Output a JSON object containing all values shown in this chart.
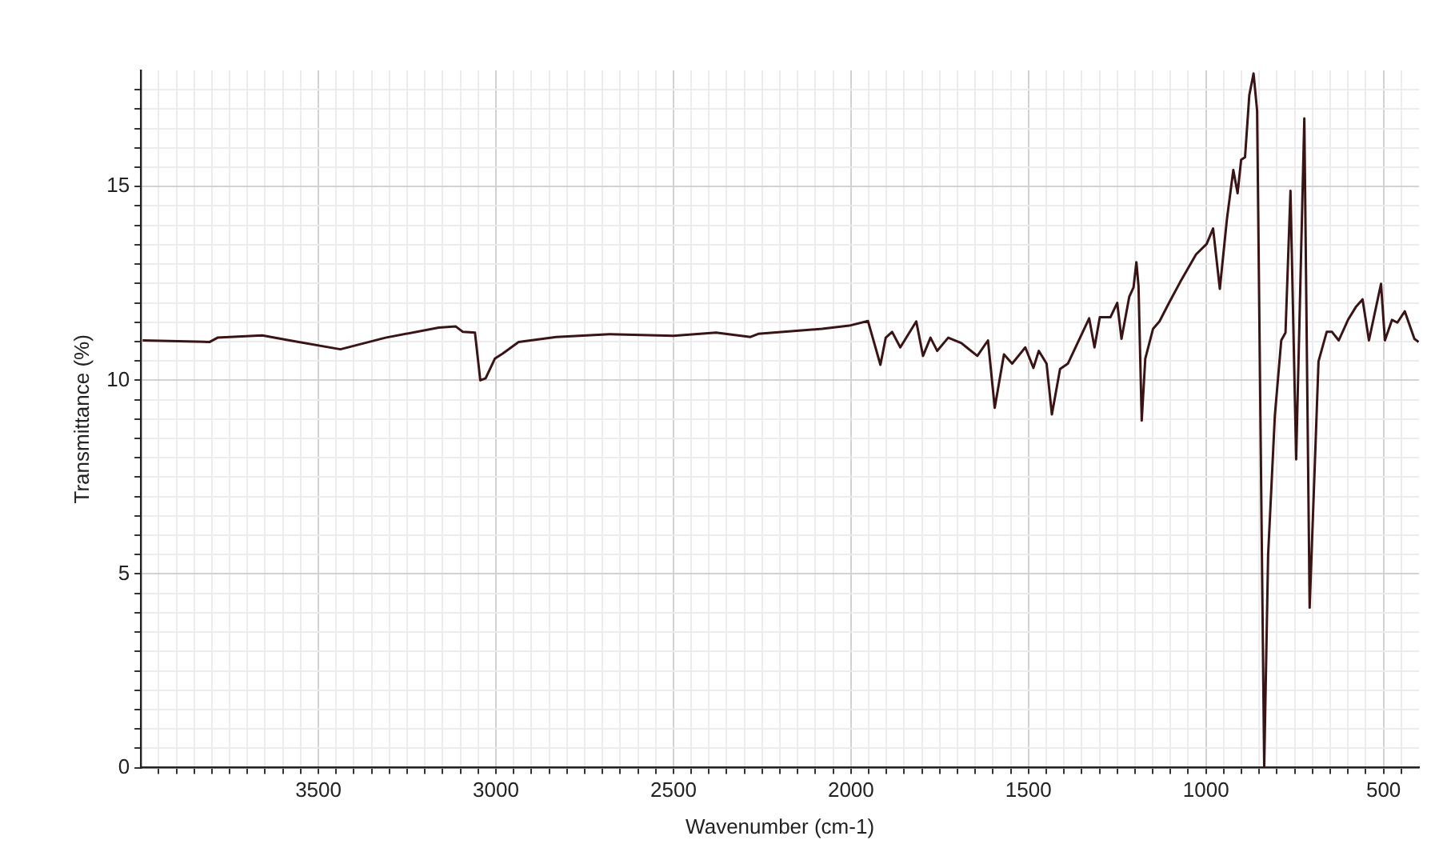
{
  "chart_data": {
    "type": "line",
    "xlabel": "Wavenumber (cm-1)",
    "ylabel": "Transmittance (%)",
    "xlim": [
      4000,
      400
    ],
    "ylim": [
      0,
      18
    ],
    "xticks": [
      {
        "value": 3950,
        "label": null
      },
      {
        "value": 3900,
        "label": null
      },
      {
        "value": 3850,
        "label": null
      },
      {
        "value": 3800,
        "label": null
      },
      {
        "value": 3750,
        "label": null
      },
      {
        "value": 3700,
        "label": null
      },
      {
        "value": 3650,
        "label": null
      },
      {
        "value": 3600,
        "label": null
      },
      {
        "value": 3550,
        "label": null
      },
      3500,
      {
        "value": 3450,
        "label": null
      },
      {
        "value": 3400,
        "label": null
      },
      {
        "value": 3350,
        "label": null
      },
      {
        "value": 3300,
        "label": null
      },
      {
        "value": 3250,
        "label": null
      },
      {
        "value": 3200,
        "label": null
      },
      {
        "value": 3150,
        "label": null
      },
      {
        "value": 3100,
        "label": null
      },
      {
        "value": 3050,
        "label": null
      },
      3000,
      {
        "value": 2950,
        "label": null
      },
      {
        "value": 2900,
        "label": null
      },
      {
        "value": 2850,
        "label": null
      },
      {
        "value": 2800,
        "label": null
      },
      {
        "value": 2750,
        "label": null
      },
      {
        "value": 2700,
        "label": null
      },
      {
        "value": 2650,
        "label": null
      },
      {
        "value": 2600,
        "label": null
      },
      {
        "value": 2550,
        "label": null
      },
      2500,
      {
        "value": 2450,
        "label": null
      },
      {
        "value": 2400,
        "label": null
      },
      {
        "value": 2350,
        "label": null
      },
      {
        "value": 2300,
        "label": null
      },
      {
        "value": 2250,
        "label": null
      },
      {
        "value": 2200,
        "label": null
      },
      {
        "value": 2150,
        "label": null
      },
      {
        "value": 2100,
        "label": null
      },
      {
        "value": 2050,
        "label": null
      },
      2000,
      {
        "value": 1950,
        "label": null
      },
      {
        "value": 1900,
        "label": null
      },
      {
        "value": 1850,
        "label": null
      },
      {
        "value": 1800,
        "label": null
      },
      {
        "value": 1750,
        "label": null
      },
      {
        "value": 1700,
        "label": null
      },
      {
        "value": 1650,
        "label": null
      },
      {
        "value": 1600,
        "label": null
      },
      {
        "value": 1550,
        "label": null
      },
      1500,
      {
        "value": 1450,
        "label": null
      },
      {
        "value": 1400,
        "label": null
      },
      {
        "value": 1350,
        "label": null
      },
      {
        "value": 1300,
        "label": null
      },
      {
        "value": 1250,
        "label": null
      },
      {
        "value": 1200,
        "label": null
      },
      {
        "value": 1150,
        "label": null
      },
      {
        "value": 1100,
        "label": null
      },
      {
        "value": 1050,
        "label": null
      },
      1000,
      {
        "value": 950,
        "label": null
      },
      {
        "value": 900,
        "label": null
      },
      {
        "value": 850,
        "label": null
      },
      {
        "value": 800,
        "label": null
      },
      {
        "value": 750,
        "label": null
      },
      {
        "value": 700,
        "label": null
      },
      {
        "value": 650,
        "label": null
      },
      {
        "value": 600,
        "label": null
      },
      {
        "value": 550,
        "label": null
      },
      500,
      {
        "value": 450,
        "label": null
      }
    ],
    "yticks": [
      0,
      {
        "value": 0.5,
        "label": null
      },
      {
        "value": 1,
        "label": null
      },
      {
        "value": 1.5,
        "label": null
      },
      {
        "value": 2,
        "label": null
      },
      {
        "value": 2.5,
        "label": null
      },
      {
        "value": 3,
        "label": null
      },
      {
        "value": 3.5,
        "label": null
      },
      {
        "value": 4,
        "label": null
      },
      {
        "value": 4.5,
        "label": null
      },
      5,
      {
        "value": 5.5,
        "label": null
      },
      {
        "value": 6,
        "label": null
      },
      {
        "value": 6.5,
        "label": null
      },
      {
        "value": 7,
        "label": null
      },
      {
        "value": 7.5,
        "label": null
      },
      {
        "value": 8,
        "label": null
      },
      {
        "value": 8.5,
        "label": null
      },
      {
        "value": 9,
        "label": null
      },
      {
        "value": 9.5,
        "label": null
      },
      10,
      {
        "value": 10.5,
        "label": null
      },
      {
        "value": 11,
        "label": null
      },
      {
        "value": 11.5,
        "label": null
      },
      {
        "value": 12,
        "label": null
      },
      {
        "value": 12.5,
        "label": null
      },
      {
        "value": 13,
        "label": null
      },
      {
        "value": 13.5,
        "label": null
      },
      {
        "value": 14,
        "label": null
      },
      {
        "value": 14.5,
        "label": null
      },
      15,
      {
        "value": 15.5,
        "label": null
      },
      {
        "value": 16,
        "label": null
      },
      {
        "value": 16.5,
        "label": null
      },
      {
        "value": 17,
        "label": null
      },
      {
        "value": 17.5,
        "label": null
      }
    ],
    "grid": true,
    "legend": false,
    "marker": "none",
    "line_style": "solid",
    "series": [
      {
        "color": "#3a1414",
        "x": [
          3995,
          3806,
          3784,
          3658,
          3581,
          3438,
          3311,
          3161,
          3113,
          3093,
          3059,
          3044,
          3029,
          3003,
          2981,
          2936,
          2830,
          2680,
          2500,
          2380,
          2283,
          2261,
          2081,
          2005,
          1952,
          1917,
          1902,
          1884,
          1861,
          1816,
          1797,
          1776,
          1757,
          1726,
          1689,
          1674,
          1644,
          1614,
          1595,
          1569,
          1546,
          1509,
          1486,
          1471,
          1449,
          1434,
          1411,
          1389,
          1329,
          1314,
          1299,
          1269,
          1250,
          1238,
          1216,
          1204,
          1196,
          1190,
          1181,
          1171,
          1149,
          1131,
          1104,
          1073,
          1028,
          998,
          980,
          961,
          941,
          923,
          911,
          901,
          890,
          878,
          866,
          856,
          836,
          825,
          806,
          788,
          776,
          762,
          746,
          723,
          708,
          683,
          660,
          645,
          626,
          600,
          578,
          559,
          541,
          507,
          496,
          476,
          461,
          440,
          413,
          401
        ],
        "values": [
          11.03,
          10.99,
          11.1,
          11.16,
          11.03,
          10.8,
          11.1,
          11.36,
          11.39,
          11.25,
          11.23,
          10.0,
          10.05,
          10.56,
          10.69,
          10.99,
          11.12,
          11.19,
          11.15,
          11.23,
          11.12,
          11.2,
          11.33,
          11.41,
          11.53,
          10.4,
          11.1,
          11.25,
          10.85,
          11.52,
          10.63,
          11.1,
          10.76,
          11.1,
          10.96,
          10.85,
          10.63,
          11.03,
          9.29,
          10.67,
          10.43,
          10.85,
          10.32,
          10.76,
          10.43,
          9.12,
          10.29,
          10.43,
          11.6,
          10.85,
          11.63,
          11.63,
          12.0,
          11.07,
          12.16,
          12.4,
          13.05,
          12.43,
          8.96,
          10.56,
          11.33,
          11.52,
          12.0,
          12.53,
          13.25,
          13.52,
          13.92,
          12.36,
          14.16,
          15.43,
          14.83,
          15.69,
          15.76,
          17.36,
          17.92,
          16.96,
          0.03,
          5.49,
          9.09,
          11.03,
          11.23,
          14.89,
          7.96,
          16.76,
          4.13,
          10.49,
          11.25,
          11.25,
          11.03,
          11.56,
          11.89,
          12.09,
          11.03,
          12.49,
          11.03,
          11.56,
          11.49,
          11.78,
          11.07,
          10.99
        ]
      }
    ]
  }
}
